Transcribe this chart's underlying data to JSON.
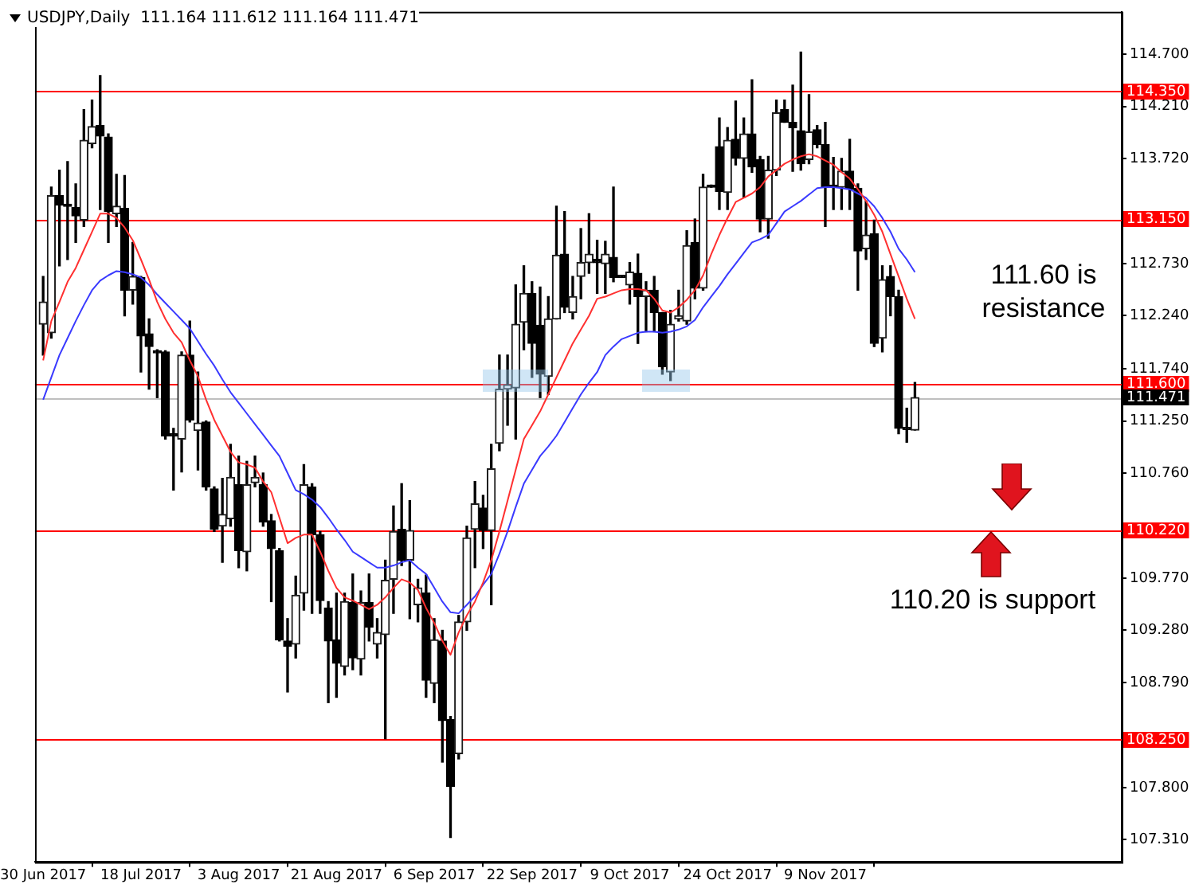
{
  "chart_data": {
    "type": "candlestick",
    "title": "USDJPY,Daily  111.164 111.612 111.164 111.471",
    "categories": [
      "30 Jun 2017",
      null,
      null,
      null,
      null,
      null,
      null,
      null,
      null,
      null,
      null,
      null,
      "18 Jul 2017",
      null,
      null,
      null,
      null,
      null,
      null,
      null,
      null,
      null,
      null,
      null,
      "3 Aug 2017",
      null,
      null,
      null,
      null,
      null,
      null,
      null,
      null,
      null,
      null,
      null,
      "21 Aug 2017",
      null,
      null,
      null,
      null,
      null,
      null,
      null,
      null,
      null,
      null,
      null,
      "6 Sep 2017",
      null,
      null,
      null,
      null,
      null,
      null,
      null,
      null,
      null,
      null,
      null,
      "22 Sep 2017",
      null,
      null,
      null,
      null,
      null,
      null,
      null,
      null,
      null,
      null,
      null,
      "9 Oct 2017",
      null,
      null,
      null,
      null,
      null,
      null,
      null,
      null,
      null,
      null,
      null,
      "24 Oct 2017",
      null,
      null,
      null,
      null,
      null,
      null,
      null,
      null,
      null,
      null,
      null,
      "9 Nov 2017",
      null,
      null,
      null,
      null,
      null,
      null,
      null,
      null,
      null,
      null,
      null
    ],
    "ohlc": [
      [
        112.16,
        112.61,
        111.87,
        112.37
      ],
      [
        112.08,
        113.45,
        112.03,
        113.37
      ],
      [
        113.37,
        113.61,
        112.71,
        113.28
      ],
      [
        113.29,
        113.69,
        112.77,
        113.27
      ],
      [
        113.26,
        113.48,
        112.93,
        113.18
      ],
      [
        113.14,
        114.18,
        113.08,
        113.89
      ],
      [
        113.86,
        114.27,
        113.82,
        114.02
      ],
      [
        114.03,
        114.5,
        113.24,
        113.93
      ],
      [
        113.92,
        113.95,
        112.93,
        113.22
      ],
      [
        113.2,
        113.57,
        113.08,
        113.27
      ],
      [
        113.25,
        113.56,
        112.24,
        112.48
      ],
      [
        112.48,
        112.93,
        112.35,
        112.61
      ],
      [
        112.6,
        112.61,
        111.71,
        112.05
      ],
      [
        112.07,
        112.21,
        111.55,
        111.95
      ],
      [
        111.91,
        111.92,
        111.47,
        111.89
      ],
      [
        111.9,
        111.91,
        111.08,
        111.11
      ],
      [
        111.13,
        111.18,
        110.6,
        111.11
      ],
      [
        111.08,
        111.9,
        110.77,
        111.87
      ],
      [
        111.87,
        112.19,
        111.24,
        111.26
      ],
      [
        111.16,
        111.71,
        110.79,
        111.23
      ],
      [
        111.24,
        111.25,
        110.6,
        110.63
      ],
      [
        110.61,
        110.63,
        110.21,
        110.23
      ],
      [
        110.26,
        110.71,
        109.92,
        110.37
      ],
      [
        110.33,
        111.03,
        110.26,
        110.72
      ],
      [
        110.65,
        110.92,
        109.87,
        110.03
      ],
      [
        110.02,
        110.87,
        109.84,
        110.65
      ],
      [
        110.67,
        110.92,
        110.63,
        110.72
      ],
      [
        110.65,
        110.76,
        110.26,
        110.3
      ],
      [
        110.31,
        110.37,
        109.55,
        110.05
      ],
      [
        110.03,
        110.05,
        109.18,
        109.19
      ],
      [
        109.18,
        109.39,
        108.7,
        109.13
      ],
      [
        109.15,
        109.79,
        109.02,
        109.61
      ],
      [
        109.63,
        110.84,
        109.47,
        110.65
      ],
      [
        110.63,
        110.66,
        109.44,
        110.18
      ],
      [
        110.18,
        110.21,
        109.44,
        109.56
      ],
      [
        109.49,
        109.55,
        108.6,
        109.18
      ],
      [
        109.19,
        109.63,
        108.65,
        108.97
      ],
      [
        108.94,
        109.63,
        108.86,
        109.55
      ],
      [
        109.54,
        109.81,
        108.91,
        109.02
      ],
      [
        109.01,
        109.65,
        108.86,
        109.54
      ],
      [
        109.54,
        109.81,
        109.18,
        109.31
      ],
      [
        109.15,
        109.39,
        109.02,
        109.26
      ],
      [
        109.24,
        109.94,
        108.26,
        109.75
      ],
      [
        109.76,
        110.45,
        109.44,
        110.21
      ],
      [
        110.23,
        110.66,
        109.89,
        109.94
      ],
      [
        109.94,
        110.5,
        109.39,
        110.22
      ],
      [
        109.52,
        109.76,
        109.36,
        109.68
      ],
      [
        109.63,
        109.8,
        108.65,
        108.81
      ],
      [
        108.78,
        109.39,
        108.6,
        109.19
      ],
      [
        109.18,
        109.28,
        108.04,
        108.43
      ],
      [
        108.44,
        108.47,
        107.33,
        107.81
      ],
      [
        108.12,
        109.42,
        108.07,
        109.36
      ],
      [
        109.36,
        110.26,
        109.28,
        110.15
      ],
      [
        110.23,
        110.68,
        109.87,
        110.47
      ],
      [
        110.43,
        110.55,
        110.05,
        110.22
      ],
      [
        110.22,
        111.03,
        109.52,
        110.8
      ],
      [
        111.04,
        111.87,
        110.97,
        111.55
      ],
      [
        111.55,
        111.87,
        111.21,
        111.59
      ],
      [
        111.56,
        112.53,
        111.08,
        112.16
      ],
      [
        112.18,
        112.71,
        111.92,
        112.45
      ],
      [
        112.45,
        112.56,
        111.66,
        111.98
      ],
      [
        112.15,
        112.51,
        111.47,
        111.69
      ],
      [
        111.67,
        112.42,
        111.5,
        112.21
      ],
      [
        112.21,
        113.27,
        112.21,
        112.81
      ],
      [
        112.82,
        113.22,
        112.27,
        112.32
      ],
      [
        112.27,
        112.61,
        112.21,
        112.42
      ],
      [
        112.61,
        113.06,
        112.4,
        112.74
      ],
      [
        112.74,
        113.2,
        112.64,
        112.82
      ],
      [
        112.77,
        112.95,
        112.45,
        112.74
      ],
      [
        112.73,
        112.94,
        112.45,
        112.82
      ],
      [
        112.79,
        113.45,
        112.56,
        112.6
      ],
      [
        112.62,
        112.62,
        112.6,
        112.6
      ],
      [
        112.53,
        112.74,
        112.35,
        112.65
      ],
      [
        112.64,
        112.82,
        111.98,
        112.42
      ],
      [
        112.42,
        112.56,
        112.09,
        112.48
      ],
      [
        112.48,
        112.61,
        112.09,
        112.27
      ],
      [
        112.27,
        112.27,
        111.69,
        111.76
      ],
      [
        111.71,
        112.29,
        111.63,
        112.16
      ],
      [
        112.21,
        112.48,
        112.19,
        112.24
      ],
      [
        112.19,
        113.04,
        112.16,
        112.9
      ],
      [
        112.93,
        113.15,
        112.4,
        112.5
      ],
      [
        112.5,
        113.57,
        112.48,
        113.45
      ],
      [
        113.47,
        113.47,
        113.45,
        113.45
      ],
      [
        113.83,
        114.1,
        113.24,
        113.41
      ],
      [
        113.4,
        114.01,
        113.24,
        113.89
      ],
      [
        113.9,
        114.26,
        113.66,
        113.72
      ],
      [
        113.72,
        114.1,
        113.35,
        113.95
      ],
      [
        113.95,
        114.46,
        113.59,
        113.64
      ],
      [
        113.71,
        113.74,
        113.03,
        113.15
      ],
      [
        113.15,
        113.74,
        112.97,
        113.61
      ],
      [
        113.61,
        114.27,
        113.56,
        114.15
      ],
      [
        114.18,
        114.27,
        114.06,
        114.06
      ],
      [
        114.06,
        114.41,
        113.6,
        114.01
      ],
      [
        113.98,
        114.72,
        113.61,
        113.67
      ],
      [
        113.71,
        114.32,
        113.67,
        113.97
      ],
      [
        113.99,
        114.03,
        113.82,
        113.85
      ],
      [
        113.85,
        114.06,
        113.08,
        113.45
      ],
      [
        113.47,
        113.73,
        113.24,
        113.45
      ],
      [
        113.45,
        113.72,
        113.24,
        113.6
      ],
      [
        113.6,
        113.9,
        113.24,
        113.43
      ],
      [
        113.44,
        113.48,
        112.48,
        112.85
      ],
      [
        112.87,
        113.32,
        112.77,
        113.0
      ],
      [
        113.01,
        113.14,
        111.95,
        111.98
      ],
      [
        112.03,
        112.71,
        111.9,
        112.58
      ],
      [
        112.61,
        112.71,
        112.24,
        112.42
      ],
      [
        112.42,
        112.48,
        111.13,
        111.18
      ],
      [
        111.19,
        111.37,
        111.05,
        111.17
      ],
      [
        111.164,
        111.612,
        111.164,
        111.471
      ]
    ],
    "series": [
      {
        "type": "line",
        "color": "#ff3030",
        "values": [
          111.82,
          112.19,
          112.37,
          112.56,
          112.69,
          112.86,
          113.03,
          113.2,
          113.2,
          113.16,
          113.07,
          112.95,
          112.77,
          112.58,
          112.37,
          112.21,
          112.08,
          111.99,
          111.82,
          111.67,
          111.45,
          111.26,
          111.11,
          110.96,
          110.86,
          110.84,
          110.81,
          110.68,
          110.58,
          110.34,
          110.1,
          110.15,
          110.18,
          110.18,
          110.02,
          109.84,
          109.68,
          109.59,
          109.56,
          109.52,
          109.48,
          109.52,
          109.59,
          109.68,
          109.76,
          109.73,
          109.66,
          109.49,
          109.35,
          109.18,
          109.05,
          109.26,
          109.42,
          109.55,
          109.73,
          109.94,
          110.21,
          110.5,
          110.79,
          111.08,
          111.21,
          111.34,
          111.5,
          111.66,
          111.82,
          111.98,
          112.11,
          112.24,
          112.4,
          112.42,
          112.45,
          112.48,
          112.49,
          112.49,
          112.48,
          112.4,
          112.29,
          112.27,
          112.32,
          112.39,
          112.48,
          112.62,
          112.82,
          113.0,
          113.16,
          113.31,
          113.35,
          113.39,
          113.45,
          113.55,
          113.61,
          113.67,
          113.71,
          113.74,
          113.76,
          113.74,
          113.7,
          113.66,
          113.59,
          113.53,
          113.43,
          113.32,
          113.19,
          113.03,
          112.82,
          112.61,
          112.4,
          112.21
        ]
      },
      {
        "type": "line",
        "color": "#3a3aff",
        "values": [
          111.45,
          111.66,
          111.87,
          112.03,
          112.19,
          112.34,
          112.48,
          112.57,
          112.62,
          112.66,
          112.65,
          112.63,
          112.6,
          112.53,
          112.44,
          112.36,
          112.28,
          112.2,
          112.12,
          112.0,
          111.88,
          111.77,
          111.64,
          111.52,
          111.42,
          111.32,
          111.22,
          111.12,
          111.02,
          110.92,
          110.76,
          110.6,
          110.56,
          110.51,
          110.44,
          110.34,
          110.23,
          110.13,
          110.02,
          109.97,
          109.92,
          109.87,
          109.87,
          109.89,
          109.92,
          109.94,
          109.87,
          109.81,
          109.68,
          109.55,
          109.45,
          109.44,
          109.52,
          109.6,
          109.71,
          109.81,
          110.0,
          110.21,
          110.44,
          110.66,
          110.79,
          110.92,
          111.01,
          111.11,
          111.24,
          111.37,
          111.5,
          111.61,
          111.71,
          111.87,
          111.95,
          112.02,
          112.05,
          112.08,
          112.09,
          112.09,
          112.08,
          112.09,
          112.11,
          112.14,
          112.2,
          112.32,
          112.42,
          112.52,
          112.63,
          112.73,
          112.83,
          112.93,
          112.96,
          113.0,
          113.11,
          113.22,
          113.27,
          113.32,
          113.38,
          113.44,
          113.45,
          113.45,
          113.44,
          113.43,
          113.39,
          113.35,
          113.27,
          113.16,
          113.03,
          112.87,
          112.77,
          112.65
        ]
      }
    ],
    "ylim": [
      107.1,
      115.1
    ],
    "yticks": [
      {
        "value": 114.7,
        "label": "114.700"
      },
      {
        "value": 114.21,
        "label": "114.210"
      },
      {
        "value": 113.72,
        "label": "113.720"
      },
      {
        "value": 112.73,
        "label": "112.730"
      },
      {
        "value": 112.24,
        "label": "112.240"
      },
      {
        "value": 111.74,
        "label": "111.740"
      },
      {
        "value": 111.25,
        "label": "111.250"
      },
      {
        "value": 110.76,
        "label": "110.760"
      },
      {
        "value": 109.77,
        "label": "109.770"
      },
      {
        "value": 109.28,
        "label": "109.280"
      },
      {
        "value": 108.79,
        "label": "108.790"
      },
      {
        "value": 107.8,
        "label": "107.800"
      },
      {
        "value": 107.31,
        "label": "107.310"
      }
    ],
    "ref_lines": [
      {
        "axis": "y",
        "value": 114.35,
        "label": "114.350",
        "color": "#ff0000"
      },
      {
        "axis": "y",
        "value": 113.15,
        "label": "113.150",
        "color": "#ff0000"
      },
      {
        "axis": "y",
        "value": 111.6,
        "label": "111.600",
        "color": "#ff0000"
      },
      {
        "axis": "y",
        "value": 111.471,
        "label": "111.471",
        "color": "#000000"
      },
      {
        "axis": "y",
        "value": 110.22,
        "label": "110.220",
        "color": "#ff0000"
      },
      {
        "axis": "y",
        "value": 108.25,
        "label": "108.250",
        "color": "#ff0000"
      }
    ],
    "annotations": [
      "111.60 is resistance",
      "110.20 is support"
    ]
  }
}
